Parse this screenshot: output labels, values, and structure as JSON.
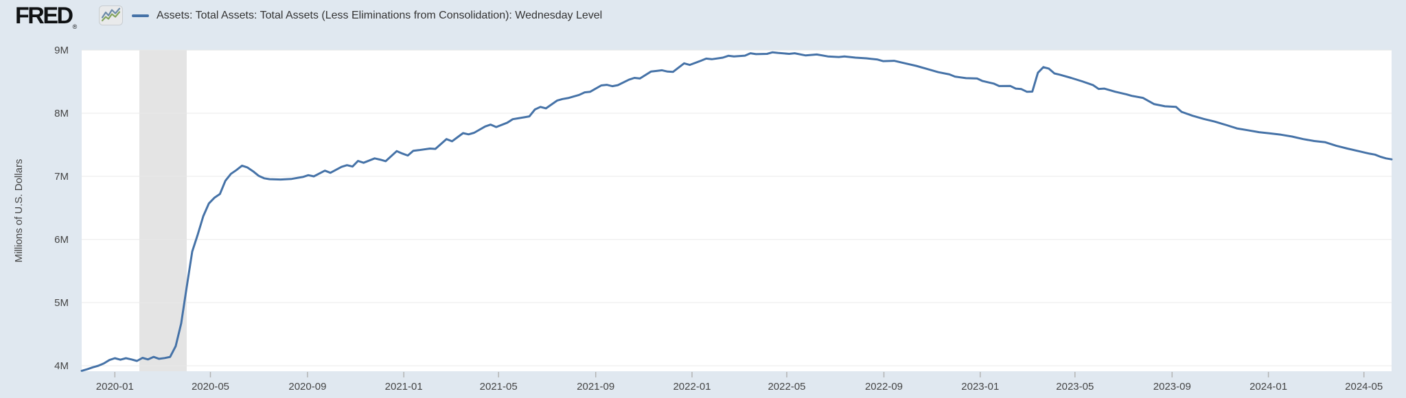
{
  "header": {
    "logo_text": "FRED",
    "registered_mark": "®",
    "logo_icon": "fred-sparkline-icon"
  },
  "colors": {
    "background": "#e0e8f0",
    "plot_background": "#ffffff",
    "line": "#4572a7",
    "recession_band": "#e4e4e4",
    "gridline": "#e9e9e9",
    "tick": "#b3b3b3",
    "axis_text": "#444444",
    "legend_text": "#333333",
    "logo_icon_blue": "#6b8aa7",
    "logo_icon_green": "#84a55e"
  },
  "chart_data": {
    "type": "line",
    "title": "Assets: Total Assets: Total Assets (Less Eliminations from Consolidation): Wednesday Level",
    "ylabel": "Millions of U.S. Dollars",
    "xlabel": "",
    "grid": "horizontal",
    "legend_position": "top",
    "x_range": [
      "2019-11-20",
      "2024-06-05"
    ],
    "ylim": [
      3913000,
      9000000
    ],
    "y_ticks": [
      {
        "label": "4M",
        "value": 4000000
      },
      {
        "label": "5M",
        "value": 5000000
      },
      {
        "label": "6M",
        "value": 6000000
      },
      {
        "label": "7M",
        "value": 7000000
      },
      {
        "label": "8M",
        "value": 8000000
      },
      {
        "label": "9M",
        "value": 9000000
      }
    ],
    "x_tick_labels": [
      "2020-01",
      "2020-05",
      "2020-09",
      "2021-01",
      "2021-05",
      "2021-09",
      "2022-01",
      "2022-05",
      "2022-09",
      "2023-01",
      "2023-05",
      "2023-09",
      "2024-01",
      "2024-05"
    ],
    "recession_bands": [
      {
        "start": "2020-02-01",
        "end": "2020-04-01"
      }
    ],
    "series": [
      {
        "name": "Assets: Total Assets: Total Assets (Less Eliminations from Consolidation): Wednesday Level",
        "color": "#4572a7",
        "units": "Millions of U.S. Dollars",
        "data": [
          [
            "2019-11-20",
            3920000
          ],
          [
            "2019-11-27",
            3945000
          ],
          [
            "2019-12-04",
            3975000
          ],
          [
            "2019-12-11",
            4000000
          ],
          [
            "2019-12-18",
            4037000
          ],
          [
            "2019-12-25",
            4090000
          ],
          [
            "2020-01-01",
            4120000
          ],
          [
            "2020-01-08",
            4096000
          ],
          [
            "2020-01-15",
            4120000
          ],
          [
            "2020-01-22",
            4100000
          ],
          [
            "2020-01-29",
            4076000
          ],
          [
            "2020-02-05",
            4125000
          ],
          [
            "2020-02-12",
            4100000
          ],
          [
            "2020-02-19",
            4140000
          ],
          [
            "2020-02-26",
            4110000
          ],
          [
            "2020-03-04",
            4122000
          ],
          [
            "2020-03-11",
            4140000
          ],
          [
            "2020-03-18",
            4310000
          ],
          [
            "2020-03-25",
            4670000
          ],
          [
            "2020-04-01",
            5250000
          ],
          [
            "2020-04-08",
            5810000
          ],
          [
            "2020-04-15",
            6080000
          ],
          [
            "2020-04-22",
            6370000
          ],
          [
            "2020-04-29",
            6570000
          ],
          [
            "2020-05-06",
            6660000
          ],
          [
            "2020-05-13",
            6720000
          ],
          [
            "2020-05-20",
            6930000
          ],
          [
            "2020-05-27",
            7040000
          ],
          [
            "2020-06-03",
            7100000
          ],
          [
            "2020-06-10",
            7170000
          ],
          [
            "2020-06-17",
            7140000
          ],
          [
            "2020-06-24",
            7080000
          ],
          [
            "2020-07-01",
            7010000
          ],
          [
            "2020-07-08",
            6970000
          ],
          [
            "2020-07-15",
            6955000
          ],
          [
            "2020-07-29",
            6950000
          ],
          [
            "2020-08-12",
            6960000
          ],
          [
            "2020-08-26",
            6990000
          ],
          [
            "2020-09-02",
            7018000
          ],
          [
            "2020-09-09",
            7000000
          ],
          [
            "2020-09-23",
            7090000
          ],
          [
            "2020-09-30",
            7056000
          ],
          [
            "2020-10-14",
            7150000
          ],
          [
            "2020-10-21",
            7177000
          ],
          [
            "2020-10-28",
            7155000
          ],
          [
            "2020-11-04",
            7245000
          ],
          [
            "2020-11-11",
            7215000
          ],
          [
            "2020-11-25",
            7285000
          ],
          [
            "2020-12-02",
            7265000
          ],
          [
            "2020-12-09",
            7240000
          ],
          [
            "2020-12-23",
            7400000
          ],
          [
            "2020-12-30",
            7362000
          ],
          [
            "2021-01-06",
            7330000
          ],
          [
            "2021-01-13",
            7405000
          ],
          [
            "2021-01-20",
            7415000
          ],
          [
            "2021-02-03",
            7440000
          ],
          [
            "2021-02-10",
            7435000
          ],
          [
            "2021-02-24",
            7590000
          ],
          [
            "2021-03-03",
            7555000
          ],
          [
            "2021-03-10",
            7620000
          ],
          [
            "2021-03-17",
            7685000
          ],
          [
            "2021-03-24",
            7665000
          ],
          [
            "2021-03-31",
            7690000
          ],
          [
            "2021-04-14",
            7790000
          ],
          [
            "2021-04-21",
            7820000
          ],
          [
            "2021-04-28",
            7782000
          ],
          [
            "2021-05-12",
            7850000
          ],
          [
            "2021-05-19",
            7905000
          ],
          [
            "2021-05-26",
            7920000
          ],
          [
            "2021-06-02",
            7935000
          ],
          [
            "2021-06-09",
            7950000
          ],
          [
            "2021-06-16",
            8060000
          ],
          [
            "2021-06-23",
            8100000
          ],
          [
            "2021-06-30",
            8077000
          ],
          [
            "2021-07-14",
            8200000
          ],
          [
            "2021-07-21",
            8225000
          ],
          [
            "2021-07-28",
            8240000
          ],
          [
            "2021-08-11",
            8290000
          ],
          [
            "2021-08-18",
            8330000
          ],
          [
            "2021-08-25",
            8340000
          ],
          [
            "2021-09-08",
            8440000
          ],
          [
            "2021-09-15",
            8450000
          ],
          [
            "2021-09-22",
            8428000
          ],
          [
            "2021-09-29",
            8445000
          ],
          [
            "2021-10-13",
            8530000
          ],
          [
            "2021-10-20",
            8560000
          ],
          [
            "2021-10-27",
            8550000
          ],
          [
            "2021-11-10",
            8660000
          ],
          [
            "2021-11-17",
            8670000
          ],
          [
            "2021-11-24",
            8680000
          ],
          [
            "2021-12-01",
            8660000
          ],
          [
            "2021-12-08",
            8655000
          ],
          [
            "2021-12-22",
            8790000
          ],
          [
            "2021-12-29",
            8765000
          ],
          [
            "2022-01-12",
            8830000
          ],
          [
            "2022-01-19",
            8865000
          ],
          [
            "2022-01-26",
            8855000
          ],
          [
            "2022-02-09",
            8880000
          ],
          [
            "2022-02-16",
            8910000
          ],
          [
            "2022-02-23",
            8900000
          ],
          [
            "2022-03-09",
            8912000
          ],
          [
            "2022-03-16",
            8950000
          ],
          [
            "2022-03-23",
            8936000
          ],
          [
            "2022-04-06",
            8940000
          ],
          [
            "2022-04-13",
            8965000
          ],
          [
            "2022-04-20",
            8955000
          ],
          [
            "2022-05-04",
            8940000
          ],
          [
            "2022-05-11",
            8950000
          ],
          [
            "2022-05-25",
            8915000
          ],
          [
            "2022-06-08",
            8930000
          ],
          [
            "2022-06-22",
            8900000
          ],
          [
            "2022-07-06",
            8890000
          ],
          [
            "2022-07-13",
            8900000
          ],
          [
            "2022-07-27",
            8880000
          ],
          [
            "2022-08-10",
            8870000
          ],
          [
            "2022-08-24",
            8850000
          ],
          [
            "2022-08-31",
            8825000
          ],
          [
            "2022-09-14",
            8830000
          ],
          [
            "2022-09-28",
            8790000
          ],
          [
            "2022-10-12",
            8750000
          ],
          [
            "2022-10-26",
            8700000
          ],
          [
            "2022-11-09",
            8650000
          ],
          [
            "2022-11-23",
            8615000
          ],
          [
            "2022-11-30",
            8580000
          ],
          [
            "2022-12-14",
            8555000
          ],
          [
            "2022-12-28",
            8550000
          ],
          [
            "2023-01-04",
            8510000
          ],
          [
            "2023-01-18",
            8470000
          ],
          [
            "2023-01-25",
            8430000
          ],
          [
            "2023-02-08",
            8433000
          ],
          [
            "2023-02-15",
            8390000
          ],
          [
            "2023-02-22",
            8383000
          ],
          [
            "2023-03-01",
            8340000
          ],
          [
            "2023-03-08",
            8342000
          ],
          [
            "2023-03-15",
            8640000
          ],
          [
            "2023-03-22",
            8730000
          ],
          [
            "2023-03-29",
            8705000
          ],
          [
            "2023-04-05",
            8630000
          ],
          [
            "2023-04-12",
            8610000
          ],
          [
            "2023-04-26",
            8560000
          ],
          [
            "2023-05-10",
            8505000
          ],
          [
            "2023-05-24",
            8445000
          ],
          [
            "2023-05-31",
            8385000
          ],
          [
            "2023-06-07",
            8390000
          ],
          [
            "2023-06-21",
            8340000
          ],
          [
            "2023-07-05",
            8300000
          ],
          [
            "2023-07-12",
            8275000
          ],
          [
            "2023-07-26",
            8243000
          ],
          [
            "2023-08-09",
            8146000
          ],
          [
            "2023-08-23",
            8110000
          ],
          [
            "2023-09-06",
            8100000
          ],
          [
            "2023-09-13",
            8022000
          ],
          [
            "2023-09-27",
            7960000
          ],
          [
            "2023-10-11",
            7910000
          ],
          [
            "2023-10-25",
            7867000
          ],
          [
            "2023-11-08",
            7815000
          ],
          [
            "2023-11-22",
            7760000
          ],
          [
            "2023-12-06",
            7730000
          ],
          [
            "2023-12-20",
            7700000
          ],
          [
            "2024-01-03",
            7680000
          ],
          [
            "2024-01-17",
            7660000
          ],
          [
            "2024-01-31",
            7630000
          ],
          [
            "2024-02-14",
            7590000
          ],
          [
            "2024-02-28",
            7560000
          ],
          [
            "2024-03-13",
            7540000
          ],
          [
            "2024-03-27",
            7485000
          ],
          [
            "2024-04-10",
            7440000
          ],
          [
            "2024-04-24",
            7400000
          ],
          [
            "2024-05-08",
            7360000
          ],
          [
            "2024-05-15",
            7345000
          ],
          [
            "2024-05-22",
            7310000
          ],
          [
            "2024-05-29",
            7285000
          ],
          [
            "2024-06-05",
            7270000
          ]
        ]
      }
    ]
  }
}
